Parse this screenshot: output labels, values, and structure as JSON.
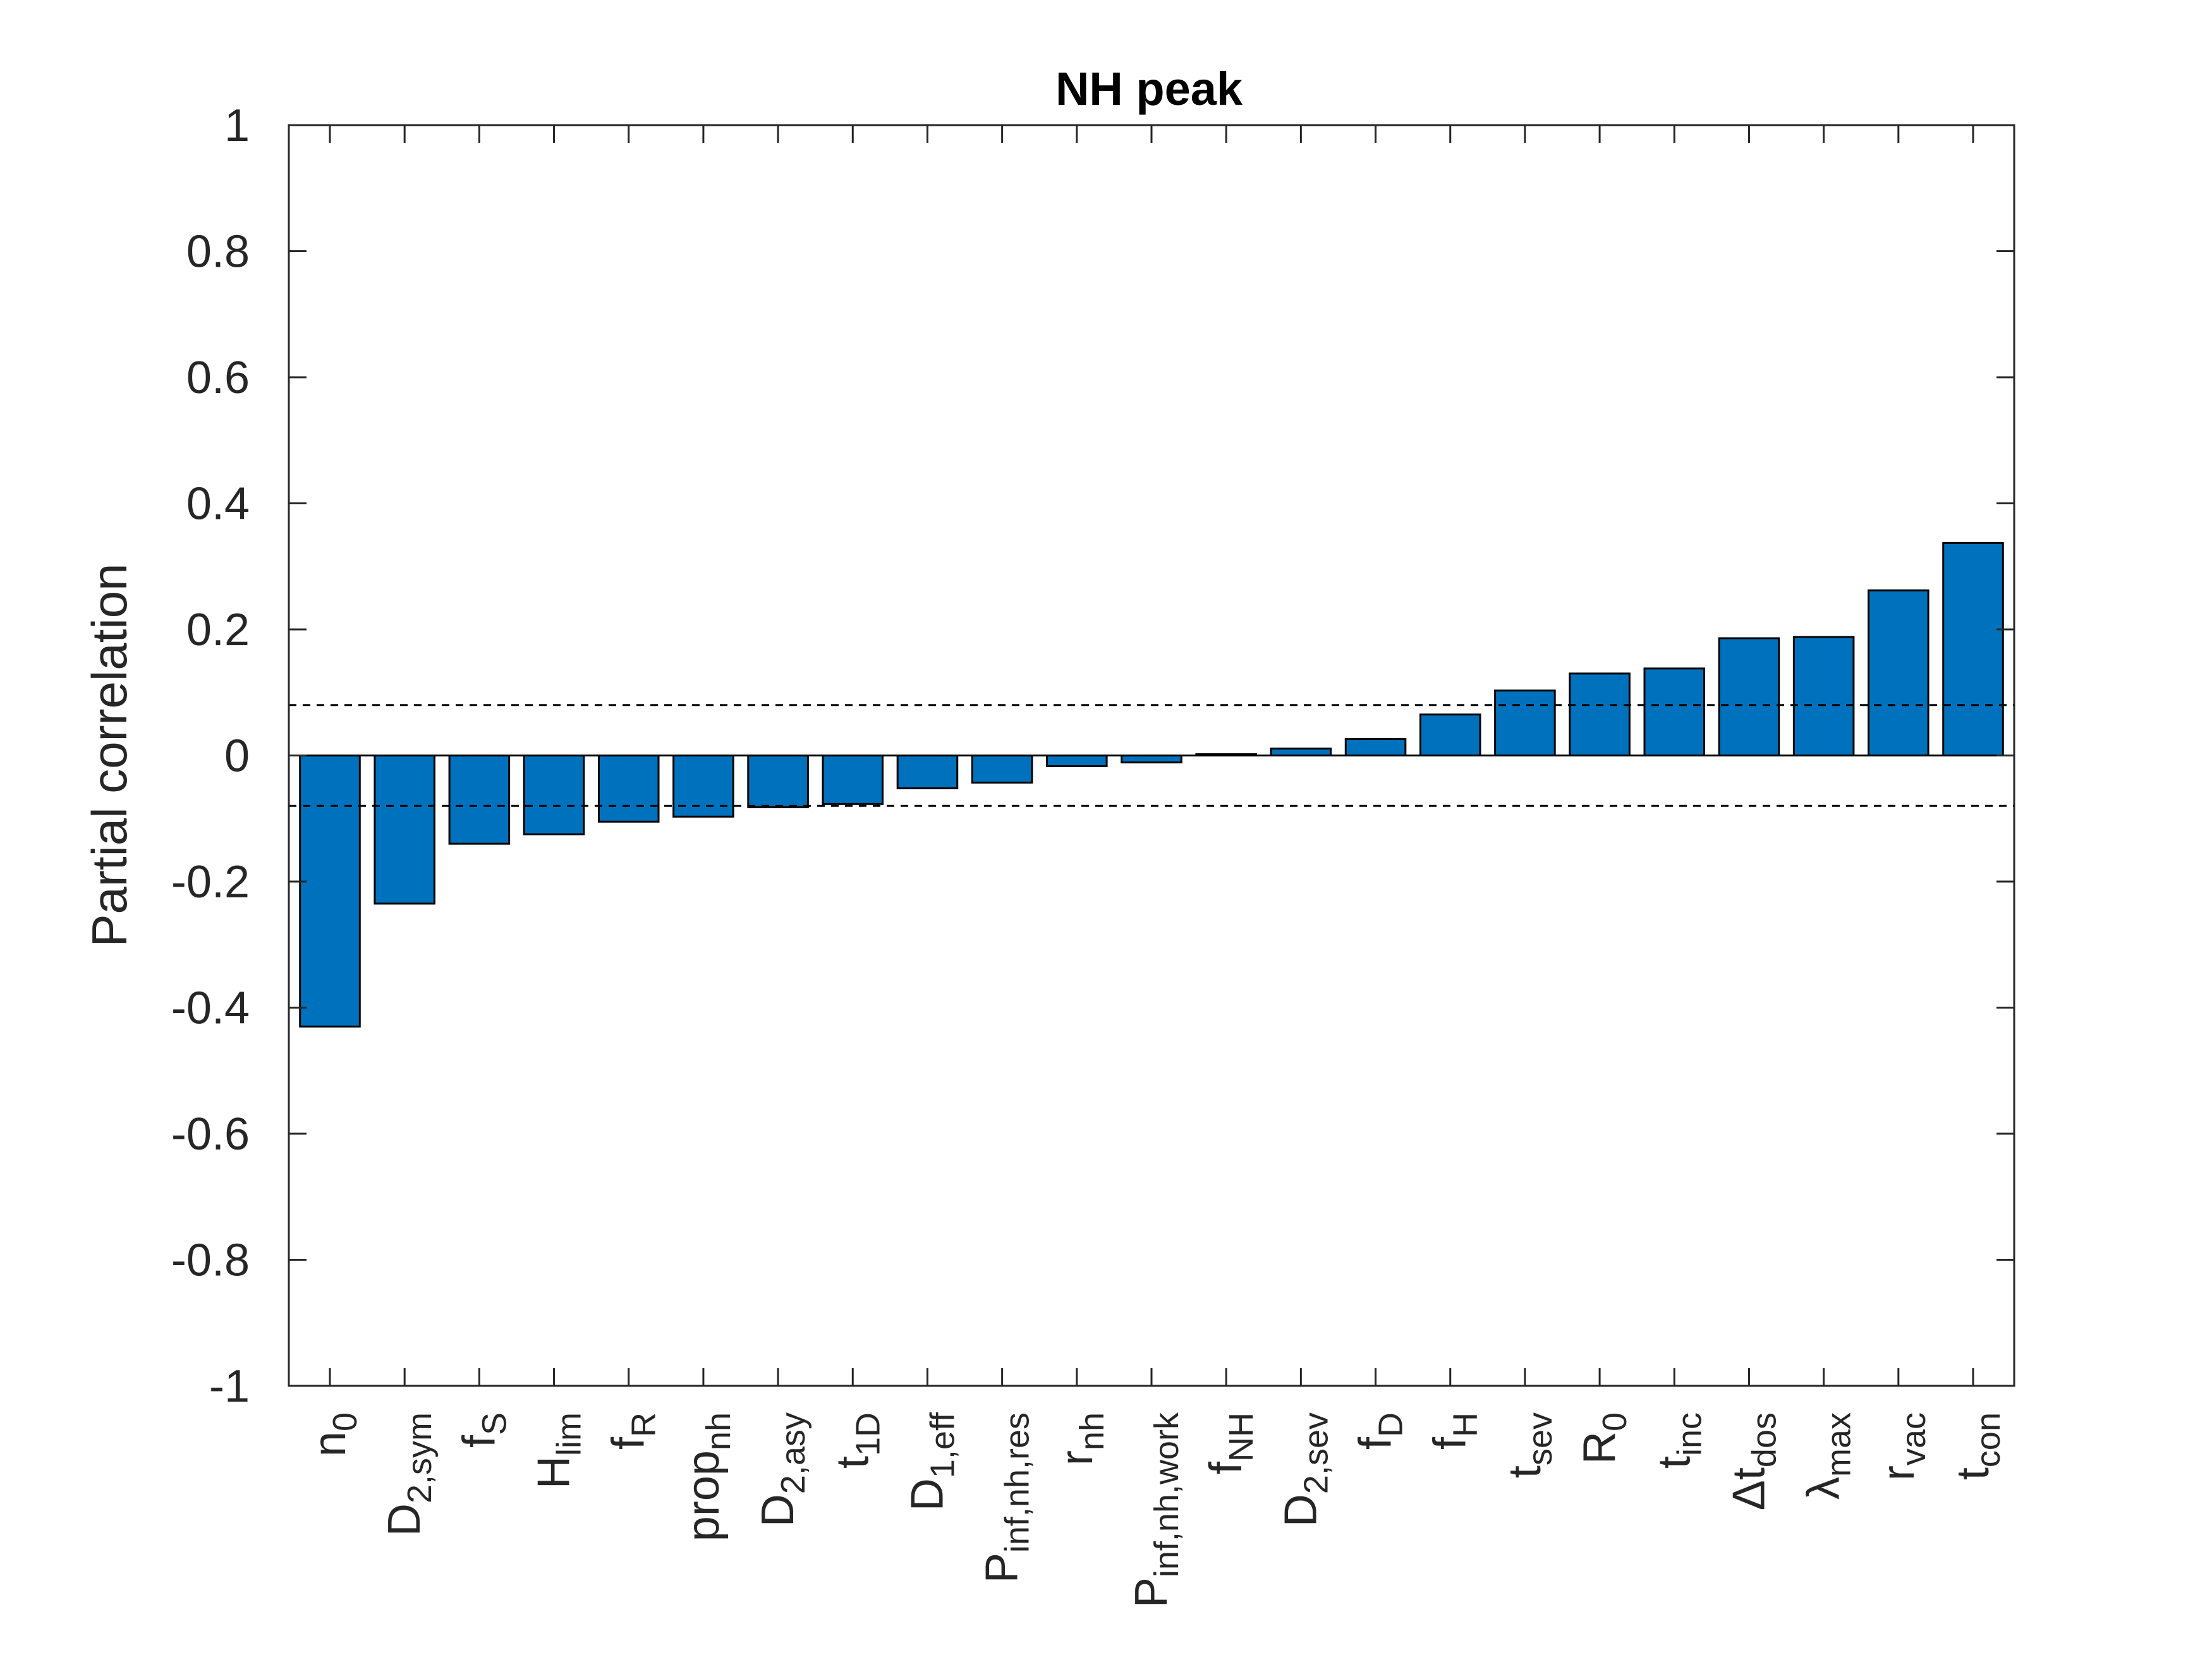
{
  "chart_data": {
    "type": "bar",
    "title": "NH peak",
    "xlabel": "",
    "ylabel": "Partial correlation",
    "ylim": [
      -1,
      1
    ],
    "yticks": [
      "-1",
      "-0.8",
      "-0.6",
      "-0.4",
      "-0.2",
      "0",
      "0.2",
      "0.4",
      "0.6",
      "0.8",
      "1"
    ],
    "grid": false,
    "bar_color": "#0072BD",
    "significance_threshold": 0.08,
    "categories": [
      {
        "base": "n",
        "sub": "0"
      },
      {
        "base": "D",
        "sub": "2,sym"
      },
      {
        "base": "f",
        "sub": "S"
      },
      {
        "base": "H",
        "sub": "lim"
      },
      {
        "base": "f",
        "sub": "R"
      },
      {
        "base": "prop",
        "sub": "nh"
      },
      {
        "base": "D",
        "sub": "2,asy"
      },
      {
        "base": "t",
        "sub": "1D"
      },
      {
        "base": "D",
        "sub": "1,eff"
      },
      {
        "base": "P",
        "sub": "inf,nh,res"
      },
      {
        "base": "r",
        "sub": "nh"
      },
      {
        "base": "P",
        "sub": "inf,nh,work"
      },
      {
        "base": "f",
        "sub": "NH"
      },
      {
        "base": "D",
        "sub": "2,sev"
      },
      {
        "base": "f",
        "sub": "D"
      },
      {
        "base": "f",
        "sub": "H"
      },
      {
        "base": "t",
        "sub": "sev"
      },
      {
        "base": "R",
        "sub": "0"
      },
      {
        "base": "t",
        "sub": "inc"
      },
      {
        "base": "Δt",
        "sub": "dos"
      },
      {
        "base": "λ",
        "sub": "max"
      },
      {
        "base": "r",
        "sub": "vac"
      },
      {
        "base": "t",
        "sub": "con"
      }
    ],
    "values": [
      -0.43,
      -0.235,
      -0.14,
      -0.125,
      -0.105,
      -0.097,
      -0.082,
      -0.077,
      -0.052,
      -0.043,
      -0.017,
      -0.011,
      0.002,
      0.011,
      0.026,
      0.065,
      0.103,
      0.13,
      0.138,
      0.186,
      0.188,
      0.262,
      0.337
    ]
  }
}
